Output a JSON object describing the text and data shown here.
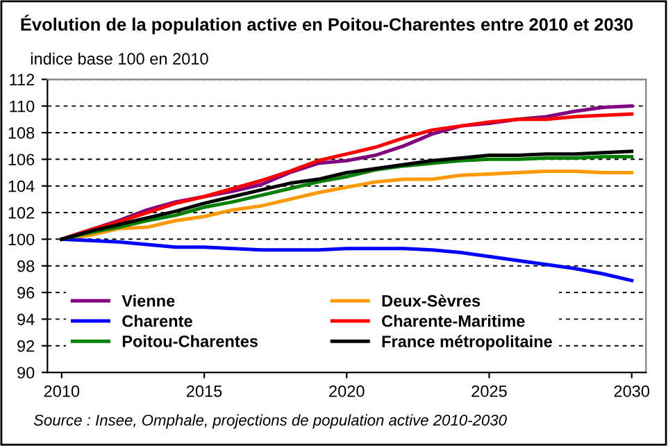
{
  "chart_data": {
    "type": "line",
    "title": "Évolution de la population active en Poitou-Charentes entre 2010 et 2030",
    "subtitle": "indice base 100 en 2010",
    "annotations": [
      "Source : Insee, Omphale, projections de population active 2010-2030"
    ],
    "x": [
      2010,
      2011,
      2012,
      2013,
      2014,
      2015,
      2016,
      2017,
      2018,
      2019,
      2020,
      2021,
      2022,
      2023,
      2024,
      2025,
      2026,
      2027,
      2028,
      2029,
      2030
    ],
    "series": [
      {
        "name": "Vienne",
        "color": "#800080",
        "values": [
          100,
          100.7,
          101.4,
          102.2,
          102.8,
          103.2,
          103.6,
          104.1,
          105.0,
          105.7,
          105.9,
          106.3,
          107.0,
          107.9,
          108.5,
          108.7,
          109.0,
          109.2,
          109.6,
          109.9,
          110.0
        ]
      },
      {
        "name": "Deux-Sèvres",
        "color": "#ff9900",
        "values": [
          100,
          100.3,
          100.8,
          100.9,
          101.4,
          101.7,
          102.2,
          102.5,
          103.0,
          103.5,
          103.9,
          104.3,
          104.5,
          104.5,
          104.8,
          104.9,
          105.0,
          105.1,
          105.1,
          105.0,
          105.0
        ]
      },
      {
        "name": "Charente",
        "color": "#0000ff",
        "values": [
          100,
          99.9,
          99.8,
          99.6,
          99.4,
          99.4,
          99.3,
          99.2,
          99.2,
          99.2,
          99.3,
          99.3,
          99.3,
          99.2,
          99.0,
          98.7,
          98.4,
          98.1,
          97.8,
          97.4,
          96.9
        ]
      },
      {
        "name": "Charente-Maritime",
        "color": "#ff0000",
        "values": [
          100,
          100.7,
          101.3,
          102.0,
          102.7,
          103.2,
          103.8,
          104.4,
          105.1,
          105.9,
          106.4,
          106.9,
          107.6,
          108.2,
          108.5,
          108.8,
          109.0,
          109.0,
          109.2,
          109.3,
          109.4
        ]
      },
      {
        "name": "Poitou-Charentes",
        "color": "#008000",
        "values": [
          100,
          100.5,
          100.9,
          101.4,
          101.8,
          102.4,
          102.8,
          103.3,
          103.8,
          104.3,
          104.7,
          105.2,
          105.5,
          105.7,
          105.9,
          106.0,
          106.0,
          106.1,
          106.1,
          106.2,
          106.2
        ]
      },
      {
        "name": "France métropolitaine",
        "color": "#000000",
        "values": [
          100,
          100.6,
          101.1,
          101.6,
          102.1,
          102.7,
          103.2,
          103.7,
          104.2,
          104.5,
          105.0,
          105.3,
          105.6,
          105.9,
          106.1,
          106.3,
          106.3,
          106.4,
          106.4,
          106.5,
          106.6
        ]
      }
    ],
    "xlim": [
      2009.5,
      2030.5
    ],
    "xticks": [
      2010,
      2015,
      2020,
      2025,
      2030
    ],
    "ylim": [
      90,
      112
    ],
    "yticks": [
      90,
      92,
      94,
      96,
      98,
      100,
      102,
      104,
      106,
      108,
      110,
      112
    ],
    "grid": "y",
    "legend": "bottom left",
    "marker": "none",
    "line_style": "solid"
  }
}
